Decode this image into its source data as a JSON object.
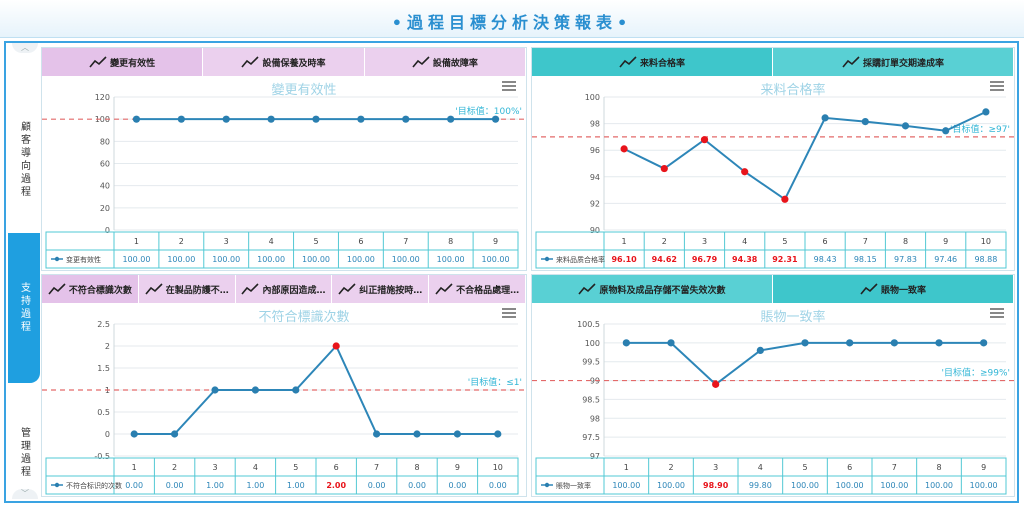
{
  "header": {
    "title": "•過程目標分析決策報表•"
  },
  "sidebar": {
    "items": [
      {
        "label": "顧客導向過程",
        "active": false
      },
      {
        "label": "支持過程",
        "active": true
      },
      {
        "label": "管理過程",
        "active": false
      }
    ]
  },
  "panels": [
    {
      "tabs": [
        "變更有效性",
        "設備保養及時率",
        "設備故障率"
      ],
      "active_tab": 0,
      "tab_style": "pink",
      "chart_data": {
        "type": "line",
        "title": "變更有效性",
        "categories": [
          "1",
          "2",
          "3",
          "4",
          "5",
          "6",
          "7",
          "8",
          "9"
        ],
        "series": [
          {
            "name": "变更有效性",
            "values": [
              100,
              100,
              100,
              100,
              100,
              100,
              100,
              100,
              100
            ]
          }
        ],
        "value_labels": [
          "100.00",
          "100.00",
          "100.00",
          "100.00",
          "100.00",
          "100.00",
          "100.00",
          "100.00",
          "100.00"
        ],
        "ylim": [
          0,
          120
        ],
        "yticks": [
          "0",
          "20",
          "40",
          "60",
          "80",
          "100",
          "120"
        ],
        "target": {
          "value": 100,
          "label": "'目标值：100%'"
        },
        "below_target_red": true
      }
    },
    {
      "tabs": [
        "来料合格率",
        "採購訂單交期達成率"
      ],
      "active_tab": 0,
      "tab_style": "teal",
      "chart_data": {
        "type": "line",
        "title": "来料合格率",
        "categories": [
          "1",
          "2",
          "3",
          "4",
          "5",
          "6",
          "7",
          "8",
          "9",
          "10"
        ],
        "series": [
          {
            "name": "来料品质合格率",
            "values": [
              96.1,
              94.62,
              96.79,
              94.38,
              92.31,
              98.43,
              98.15,
              97.83,
              97.46,
              98.88
            ]
          }
        ],
        "value_labels": [
          "96.10",
          "94.62",
          "96.79",
          "94.38",
          "92.31",
          "98.43",
          "98.15",
          "97.83",
          "97.46",
          "98.88"
        ],
        "ylim": [
          90,
          100
        ],
        "yticks": [
          "90",
          "92",
          "94",
          "96",
          "98",
          "100"
        ],
        "target": {
          "value": 97,
          "label": "'目标值：≥97'"
        },
        "below_target_red": true
      }
    },
    {
      "tabs": [
        "不符合標識次數",
        "在製品防護不…",
        "內部原因造成…",
        "纠正措施按時…",
        "不合格品處理…"
      ],
      "active_tab": 0,
      "tab_style": "pink",
      "chart_data": {
        "type": "line",
        "title": "不符合標識次數",
        "categories": [
          "1",
          "2",
          "3",
          "4",
          "5",
          "6",
          "7",
          "8",
          "9",
          "10"
        ],
        "series": [
          {
            "name": "不符合标识的次数",
            "values": [
              0,
              0,
              1,
              1,
              1,
              2,
              0,
              0,
              0,
              0
            ]
          }
        ],
        "value_labels": [
          "0.00",
          "0.00",
          "1.00",
          "1.00",
          "1.00",
          "2.00",
          "0.00",
          "0.00",
          "0.00",
          "0.00"
        ],
        "ylim": [
          -0.5,
          2.5
        ],
        "yticks": [
          "-0.5",
          "0",
          "0.5",
          "1",
          "1.5",
          "2",
          "2.5"
        ],
        "target": {
          "value": 1,
          "label": "'目标值：≤1'"
        },
        "above_target_red": true
      }
    },
    {
      "tabs": [
        "原物料及成品存儲不當失效次數",
        "賬物一致率"
      ],
      "active_tab": 1,
      "tab_style": "teal",
      "chart_data": {
        "type": "line",
        "title": "賬物一致率",
        "categories": [
          "1",
          "2",
          "3",
          "4",
          "5",
          "6",
          "7",
          "8",
          "9"
        ],
        "series": [
          {
            "name": "賬物一致率",
            "values": [
              100,
              100,
              98.9,
              99.8,
              100,
              100,
              100,
              100,
              100
            ]
          }
        ],
        "value_labels": [
          "100.00",
          "100.00",
          "98.90",
          "99.80",
          "100.00",
          "100.00",
          "100.00",
          "100.00",
          "100.00"
        ],
        "ylim": [
          97,
          100.5
        ],
        "yticks": [
          "97",
          "97.5",
          "98",
          "98.5",
          "99",
          "99.5",
          "100",
          "100.5"
        ],
        "target": {
          "value": 99,
          "label": "'目标值：≥99%'"
        },
        "below_target_red": true
      }
    }
  ],
  "colors": {
    "line": "#2d86b8",
    "point": "#2a7fb0",
    "point_alert": "#e8141b",
    "target_line": "#e36a6a",
    "target_label": "#32b6d6",
    "title": "#9fd3e6",
    "grid": "#e4eaee",
    "table_border": "#52c8d4",
    "label_alert": "#e8141b"
  },
  "icons": {
    "tab_icon": "trend-line-icon",
    "menu_icon": "hamburger-menu-icon",
    "scroll_up": "chevron-up-icon",
    "scroll_down": "chevron-down-icon"
  }
}
